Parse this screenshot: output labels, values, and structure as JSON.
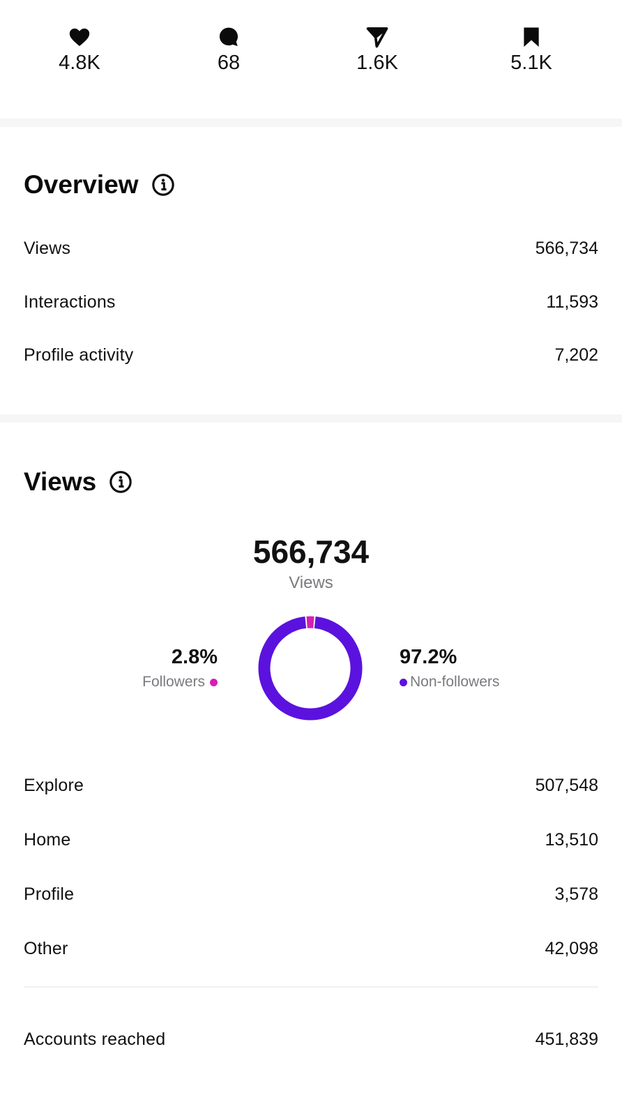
{
  "stats": [
    {
      "icon": "heart-icon",
      "value": "4.8K"
    },
    {
      "icon": "comment-icon",
      "value": "68"
    },
    {
      "icon": "share-icon",
      "value": "1.6K"
    },
    {
      "icon": "bookmark-icon",
      "value": "5.1K"
    }
  ],
  "overview": {
    "title": "Overview",
    "rows": [
      {
        "label": "Views",
        "value": "566,734"
      },
      {
        "label": "Interactions",
        "value": "11,593"
      },
      {
        "label": "Profile activity",
        "value": "7,202"
      }
    ]
  },
  "views": {
    "title": "Views",
    "total": "566,734",
    "total_caption": "Views",
    "followers_pct": "2.8%",
    "followers_label": "Followers",
    "non_followers_pct": "97.2%",
    "non_followers_label": "Non-followers",
    "sources": [
      {
        "label": "Explore",
        "value": "507,548"
      },
      {
        "label": "Home",
        "value": "13,510"
      },
      {
        "label": "Profile",
        "value": "3,578"
      },
      {
        "label": "Other",
        "value": "42,098"
      }
    ],
    "accounts_reached_label": "Accounts reached",
    "accounts_reached_value": "451,839"
  },
  "colors": {
    "followers": "#d61fb3",
    "non_followers": "#5b12de",
    "band": "#f6f6f7"
  },
  "chart_data": {
    "type": "pie",
    "categories": [
      "Followers",
      "Non-followers"
    ],
    "values": [
      2.8,
      97.2
    ],
    "title": "",
    "colors": [
      "#d61fb3",
      "#5b12de"
    ]
  }
}
